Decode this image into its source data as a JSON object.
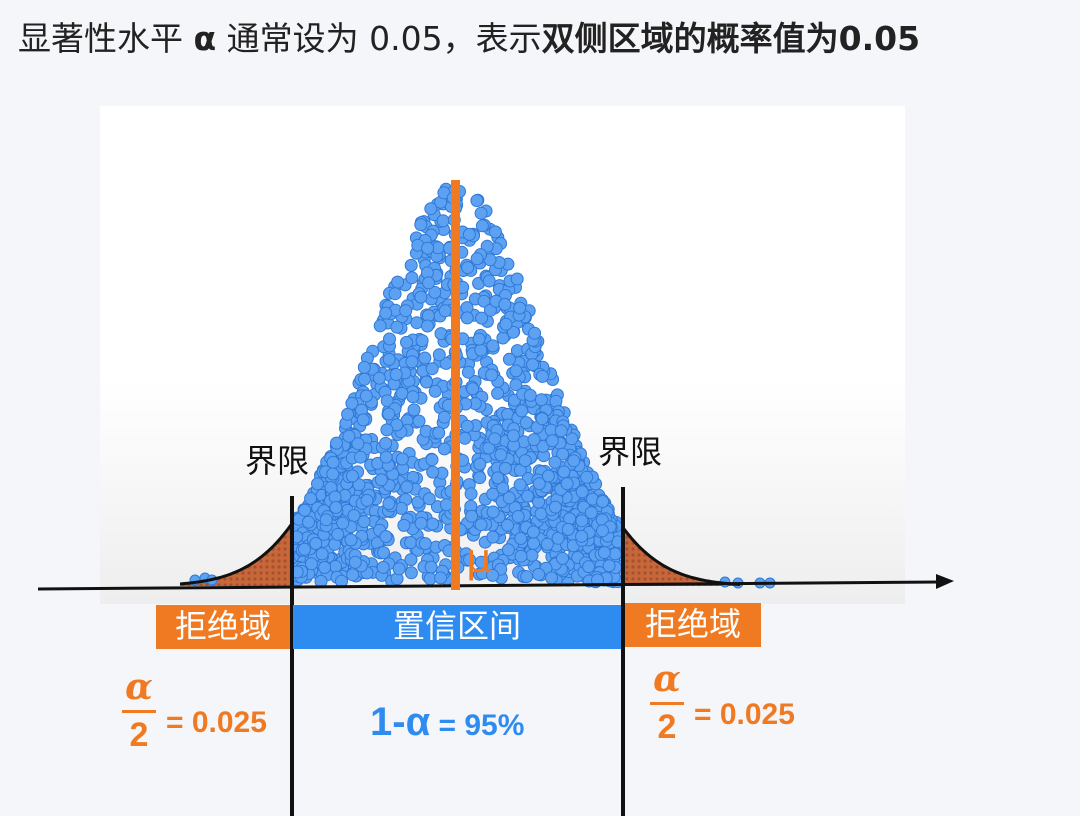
{
  "title": {
    "part1": "显著性水平 ",
    "alpha": "α",
    "part2": " 通常设为 0.05，表示",
    "bold": "双侧区域的概率值为0.05"
  },
  "boundary_left": "界限",
  "boundary_right": "界限",
  "mu": "μ",
  "rejection_left": "拒绝域",
  "rejection_right": "拒绝域",
  "confidence_interval": "置信区间",
  "left_tail": {
    "numerator": "α",
    "denominator": "2",
    "equals": "= 0.025"
  },
  "right_tail": {
    "numerator": "α",
    "denominator": "2",
    "equals": "= 0.025"
  },
  "center": {
    "main": "1-α",
    "equals": " = 95%"
  },
  "colors": {
    "orange": "#f07a22",
    "blue": "#2e8bf0",
    "dot": "#5da2f2",
    "tail": "#c8683a"
  },
  "chart_data": {
    "type": "area",
    "distribution": "normal",
    "alpha": 0.05,
    "tail_probability_each": 0.025,
    "confidence_level": 0.95
  }
}
